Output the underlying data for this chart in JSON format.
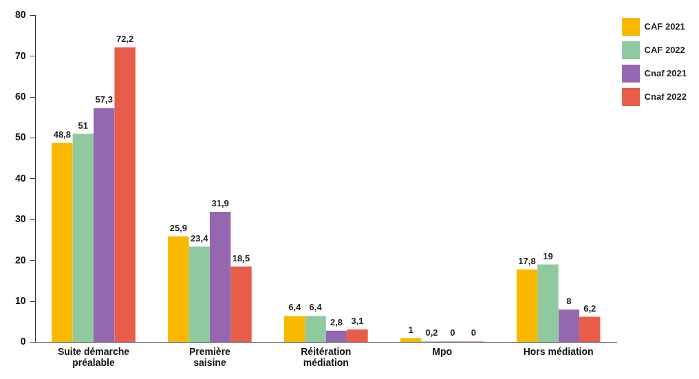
{
  "chart_data": {
    "type": "bar",
    "categories": [
      "Suite démarche préalable",
      "Première saisine",
      "Réitération médiation",
      "Mpo",
      "Hors médiation"
    ],
    "series": [
      {
        "name": "CAF 2021",
        "color": "#f9b800",
        "values": [
          48.8,
          25.9,
          6.4,
          1,
          17.8
        ],
        "value_labels": [
          "48,8",
          "25,9",
          "6,4",
          "1",
          "17,8"
        ]
      },
      {
        "name": "CAF 2022",
        "color": "#8fc9a0",
        "values": [
          51,
          23.4,
          6.4,
          0.2,
          19
        ],
        "value_labels": [
          "51",
          "23,4",
          "6,4",
          "0,2",
          "19"
        ]
      },
      {
        "name": "Cnaf 2021",
        "color": "#9467b0",
        "values": [
          57.3,
          31.9,
          2.8,
          0,
          8
        ],
        "value_labels": [
          "57,3",
          "31,9",
          "2,8",
          "0",
          "8"
        ]
      },
      {
        "name": "Cnaf 2022",
        "color": "#e85c4a",
        "values": [
          72.2,
          18.5,
          3.1,
          0,
          6.2
        ],
        "value_labels": [
          "72,2",
          "18,5",
          "3,1",
          "0",
          "6,2"
        ]
      }
    ],
    "ylim": [
      0,
      80
    ],
    "yticks": [
      0,
      10,
      20,
      30,
      40,
      50,
      60,
      70,
      80
    ],
    "grid": false,
    "legend": "top right"
  }
}
